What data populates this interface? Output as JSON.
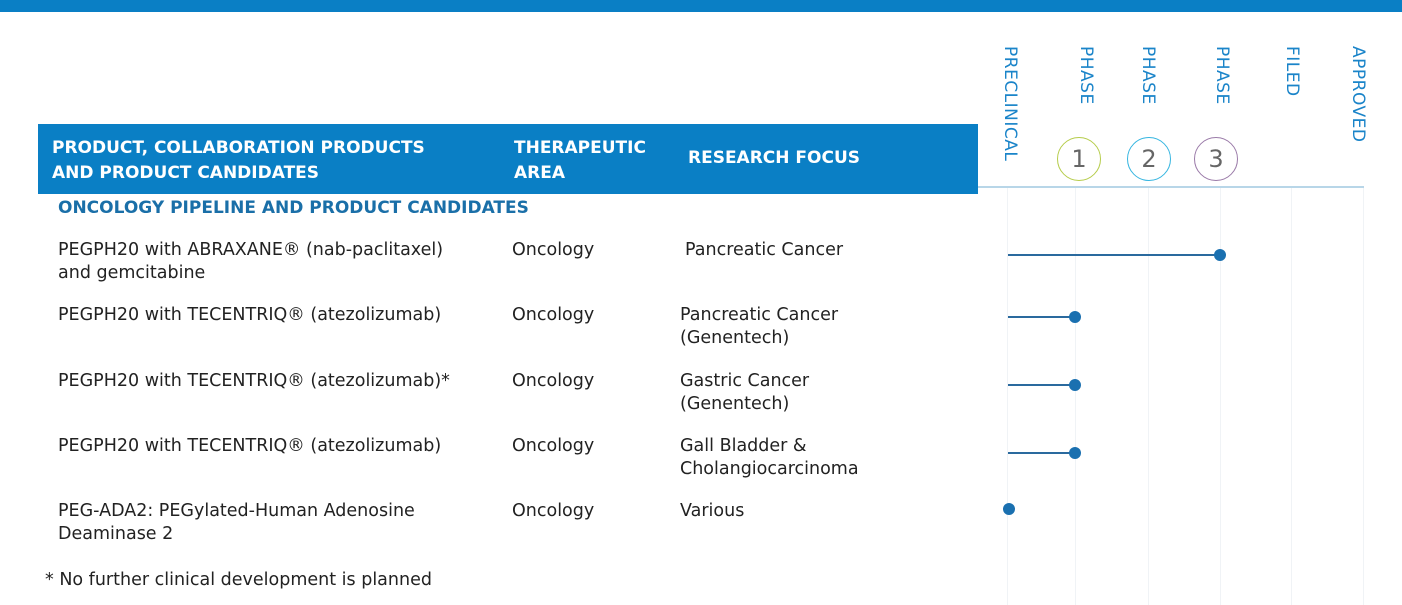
{
  "header": {
    "product_col": "PRODUCT, COLLABORATION PRODUCTS\nAND PRODUCT CANDIDATES",
    "area_col": "THERAPEUTIC\nAREA",
    "focus_col": "RESEARCH FOCUS"
  },
  "stages": [
    "PRECLINICAL",
    "PHASE",
    "PHASE",
    "PHASE",
    "FILED",
    "APPROVED"
  ],
  "phase_numbers": [
    "1",
    "2",
    "3"
  ],
  "phase_colors": [
    "#b5cc4a",
    "#35b5e0",
    "#9a7aa8"
  ],
  "accent_color": "#0a7fc5",
  "section_title": "ONCOLOGY PIPELINE AND PRODUCT CANDIDATES",
  "rows": [
    {
      "product": "PEGPH20 with ABRAXANE® (nab-paclitaxel)\nand gemcitabine",
      "area": "Oncology",
      "focus": " Pancreatic Cancer",
      "stage": "Phase 3"
    },
    {
      "product": "PEGPH20 with TECENTRIQ® (atezolizumab)",
      "area": "Oncology",
      "focus": " Pancreatic Cancer\n(Genentech)",
      "stage": "Phase 1"
    },
    {
      "product": "PEGPH20 with TECENTRIQ® (atezolizumab)*",
      "area": "Oncology",
      "focus": "Gastric Cancer\n(Genentech)",
      "stage": "Phase 1"
    },
    {
      "product": "PEGPH20 with TECENTRIQ® (atezolizumab)",
      "area": "Oncology",
      "focus": "Gall Bladder &\nCholangiocarcinoma",
      "stage": "Phase 1"
    },
    {
      "product": "PEG-ADA2: PEGylated-Human Adenosine\nDeaminase 2",
      "area": "Oncology",
      "focus": "Various",
      "stage": "Preclinical"
    }
  ],
  "footnote": "* No further clinical development is planned"
}
